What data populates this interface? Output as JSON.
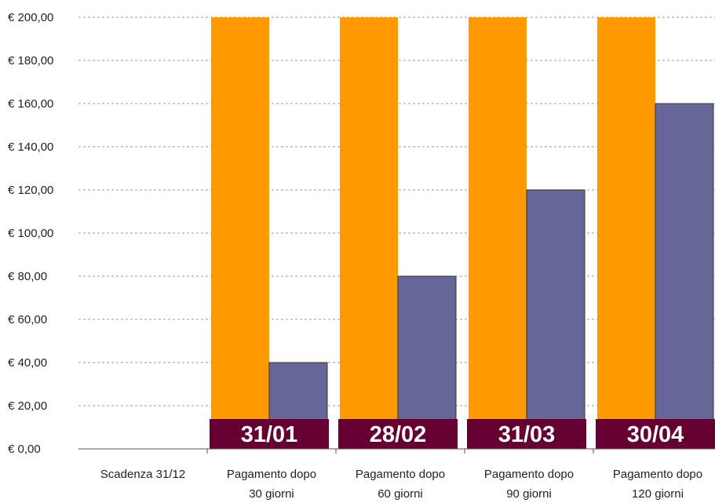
{
  "chart_data": {
    "type": "bar",
    "title": "",
    "xlabel": "",
    "ylabel": "",
    "ylim": [
      0,
      200
    ],
    "y_ticks": [
      "€ 0,00",
      "€ 20,00",
      "€ 40,00",
      "€ 60,00",
      "€ 80,00",
      "€ 100,00",
      "€ 120,00",
      "€ 140,00",
      "€ 160,00",
      "€ 180,00",
      "€ 200,00"
    ],
    "categories": [
      [
        "Scadenza 31/12"
      ],
      [
        "Pagamento dopo",
        "30 giorni"
      ],
      [
        "Pagamento dopo",
        "60 giorni"
      ],
      [
        "Pagamento dopo",
        "90 giorni"
      ],
      [
        "Pagamento dopo",
        "120 giorni"
      ]
    ],
    "series": [
      {
        "color": "#ff9900",
        "values": [
          0,
          200,
          200,
          200,
          200
        ]
      },
      {
        "color": "#666699",
        "values": [
          0,
          40,
          80,
          120,
          160
        ]
      }
    ],
    "date_labels": [
      "",
      "31/01",
      "28/02",
      "31/03",
      "30/04"
    ],
    "date_label_color": "#660033",
    "grid": "horizontal dashed",
    "legend": "none"
  }
}
